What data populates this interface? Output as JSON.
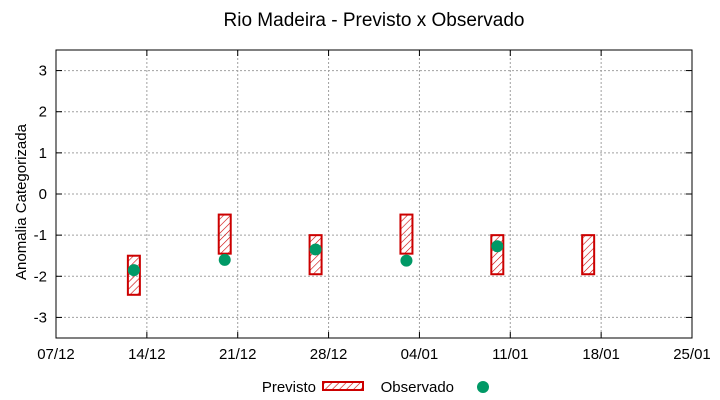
{
  "chart_data": {
    "type": "scatter",
    "title": "Rio Madeira - Previsto x Observado",
    "xlabel": "",
    "ylabel": "Anomalia Categorizada",
    "ylim": [
      -3.5,
      3.5
    ],
    "yticks": [
      3,
      2,
      1,
      0,
      -1,
      -2,
      -3
    ],
    "ytick_labels": [
      "3",
      "2",
      "1",
      "0",
      "-1",
      "-2",
      "-3"
    ],
    "xlim": [
      0,
      49
    ],
    "xticks": [
      0,
      7,
      14,
      21,
      28,
      35,
      42,
      49
    ],
    "xtick_labels": [
      "07/12",
      "14/12",
      "21/12",
      "28/12",
      "04/01",
      "11/01",
      "18/01",
      "25/01"
    ],
    "grid": true,
    "legend_position": "bottom-center",
    "series": [
      {
        "name": "Previsto",
        "kind": "range-box",
        "color": "#cc0000",
        "x": [
          6,
          13,
          20,
          27,
          34,
          41
        ],
        "low": [
          -2.45,
          -1.45,
          -1.95,
          -1.45,
          -1.95,
          -1.95
        ],
        "high": [
          -1.5,
          -0.5,
          -1.0,
          -0.5,
          -1.0,
          -1.0
        ]
      },
      {
        "name": "Observado",
        "kind": "point",
        "color": "#009966",
        "x": [
          6,
          13,
          20,
          27,
          34
        ],
        "values": [
          -1.85,
          -1.6,
          -1.35,
          -1.62,
          -1.27
        ]
      }
    ]
  }
}
